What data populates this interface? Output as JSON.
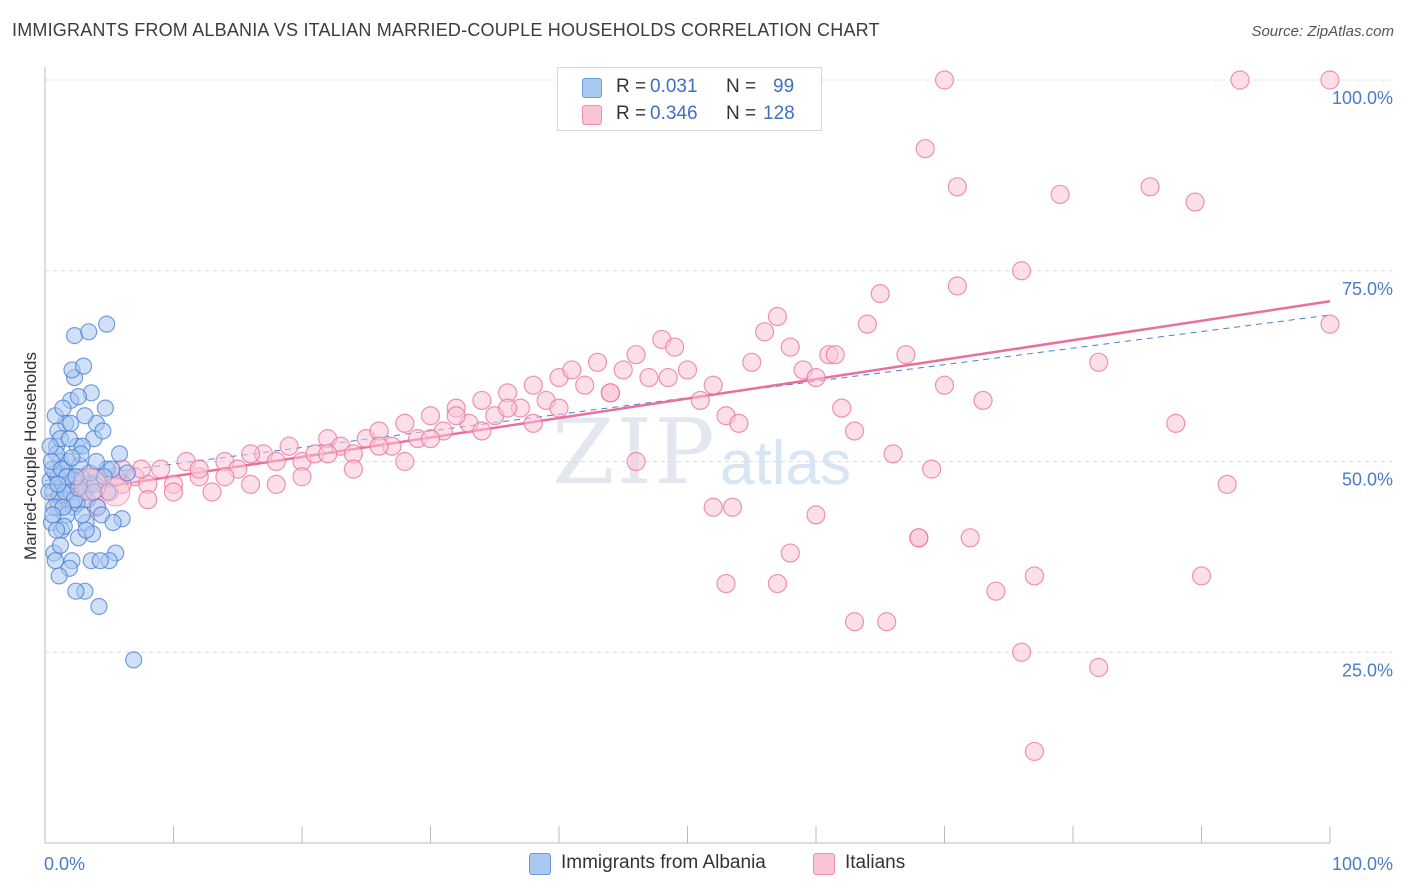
{
  "title": "IMMIGRANTS FROM ALBANIA VS ITALIAN MARRIED-COUPLE HOUSEHOLDS CORRELATION CHART",
  "source": "Source: ZipAtlas.com",
  "watermark": {
    "zip": "ZIP",
    "atlas": "atlas"
  },
  "legend": {
    "rows": [
      {
        "r_label": "R =",
        "r_value": "0.031",
        "n_label": "N =",
        "n_value": "99",
        "color": "#aac8f0",
        "border": "#6b9be0"
      },
      {
        "r_label": "R =",
        "r_value": "0.346",
        "n_label": "N =",
        "n_value": "128",
        "color": "#f9c5d6",
        "border": "#ee8fae"
      }
    ]
  },
  "bottom_legend": [
    {
      "label": "Immigrants from Albania",
      "color": "#aac8f0",
      "border": "#6b9be0"
    },
    {
      "label": "Italians",
      "color": "#f9c5d6",
      "border": "#ee8fae"
    }
  ],
  "chart_data": {
    "type": "scatter",
    "title": "IMMIGRANTS FROM ALBANIA VS ITALIAN MARRIED-COUPLE HOUSEHOLDS CORRELATION CHART",
    "xlabel": "",
    "ylabel": "Married-couple Households",
    "xlim": [
      0,
      100
    ],
    "ylim": [
      0,
      101
    ],
    "x_tick_labels": [
      "0.0%",
      "100.0%"
    ],
    "y_tick_labels": [
      "25.0%",
      "50.0%",
      "75.0%",
      "100.0%"
    ],
    "y_ticks": [
      25,
      50,
      75,
      100
    ],
    "grid": true,
    "legend_position": "top-center",
    "series": [
      {
        "name": "Immigrants from Albania",
        "color": "#4a7fd6",
        "fill": "#aac8f0",
        "trend": {
          "x": [
            0,
            100
          ],
          "y": [
            47.5,
            69.2
          ],
          "style": "dashed"
        },
        "points": [
          [
            0.4,
            47.5
          ],
          [
            0.6,
            46
          ],
          [
            0.8,
            48.5
          ],
          [
            1.0,
            44
          ],
          [
            1.2,
            50
          ],
          [
            1.4,
            47
          ],
          [
            0.5,
            42
          ],
          [
            0.9,
            52
          ],
          [
            1.1,
            45.5
          ],
          [
            1.5,
            49
          ],
          [
            0.7,
            38
          ],
          [
            1.3,
            41
          ],
          [
            1.6,
            55
          ],
          [
            0.8,
            56
          ],
          [
            1.0,
            54
          ],
          [
            2.0,
            58
          ],
          [
            2.3,
            61
          ],
          [
            2.5,
            52
          ],
          [
            2.8,
            48
          ],
          [
            3.0,
            46
          ],
          [
            2.2,
            44
          ],
          [
            1.8,
            50
          ],
          [
            1.7,
            43
          ],
          [
            2.6,
            40
          ],
          [
            3.2,
            42
          ],
          [
            3.5,
            47
          ],
          [
            3.8,
            53
          ],
          [
            4.0,
            55
          ],
          [
            4.5,
            54
          ],
          [
            2.1,
            37
          ],
          [
            1.9,
            36
          ],
          [
            3.1,
            33
          ],
          [
            2.4,
            33
          ],
          [
            4.2,
            31
          ],
          [
            5.5,
            38
          ],
          [
            5.0,
            37
          ],
          [
            3.6,
            37
          ],
          [
            4.8,
            49
          ],
          [
            5.2,
            49
          ],
          [
            6.0,
            42.5
          ],
          [
            2.3,
            66.5
          ],
          [
            3.4,
            67
          ],
          [
            4.8,
            68
          ],
          [
            2.1,
            62
          ],
          [
            3.0,
            62.5
          ],
          [
            3.6,
            59
          ],
          [
            2.6,
            58.5
          ],
          [
            1.4,
            57
          ],
          [
            1.2,
            53
          ],
          [
            2.9,
            52
          ],
          [
            3.3,
            45
          ],
          [
            4.1,
            44
          ],
          [
            4.4,
            43
          ],
          [
            1.0,
            48
          ],
          [
            0.6,
            49
          ],
          [
            0.9,
            51
          ],
          [
            1.8,
            47
          ],
          [
            2.0,
            46
          ],
          [
            2.7,
            49.5
          ],
          [
            3.9,
            47
          ],
          [
            4.6,
            48
          ],
          [
            0.3,
            46
          ],
          [
            0.5,
            50
          ],
          [
            1.6,
            46
          ],
          [
            2.2,
            47.5
          ],
          [
            3.7,
            40.5
          ],
          [
            4.3,
            37
          ],
          [
            5.8,
            51
          ],
          [
            6.4,
            48.5
          ],
          [
            1.1,
            35
          ],
          [
            0.8,
            37
          ],
          [
            2.5,
            44.5
          ],
          [
            3.2,
            41
          ],
          [
            1.5,
            41.5
          ],
          [
            0.7,
            44
          ],
          [
            1.3,
            49
          ],
          [
            2.9,
            43
          ],
          [
            1.9,
            53
          ],
          [
            4.7,
            57
          ],
          [
            3.1,
            56
          ],
          [
            0.4,
            52
          ],
          [
            1.2,
            39
          ],
          [
            2.3,
            45
          ],
          [
            2.0,
            55
          ],
          [
            2.8,
            51
          ],
          [
            5.3,
            42
          ],
          [
            6.9,
            24
          ],
          [
            1.7,
            48
          ],
          [
            3.5,
            48.5
          ],
          [
            4.0,
            50
          ],
          [
            2.6,
            46.5
          ],
          [
            1.4,
            44
          ],
          [
            0.9,
            41
          ],
          [
            0.6,
            43
          ],
          [
            2.4,
            48
          ],
          [
            3.8,
            46
          ],
          [
            1.0,
            47
          ],
          [
            2.1,
            50.5
          ],
          [
            4.9,
            46
          ]
        ]
      },
      {
        "name": "Italians",
        "color": "#e9709a",
        "fill": "#f9c5d6",
        "trend": {
          "x": [
            0,
            100
          ],
          "y": [
            45.5,
            71.0
          ],
          "style": "solid"
        },
        "points": [
          [
            1.0,
            45
          ],
          [
            2.0,
            47
          ],
          [
            3.0,
            46
          ],
          [
            4.0,
            48
          ],
          [
            5.0,
            46
          ],
          [
            6.0,
            49
          ],
          [
            7.0,
            48
          ],
          [
            8.0,
            47
          ],
          [
            9.0,
            49
          ],
          [
            10.0,
            47
          ],
          [
            11.0,
            50
          ],
          [
            12.0,
            48
          ],
          [
            13.0,
            46
          ],
          [
            14.0,
            50
          ],
          [
            15.0,
            49
          ],
          [
            16.0,
            47
          ],
          [
            17.0,
            51
          ],
          [
            18.0,
            50
          ],
          [
            19.0,
            52
          ],
          [
            20.0,
            50
          ],
          [
            21.0,
            51
          ],
          [
            22.0,
            53
          ],
          [
            23.0,
            52
          ],
          [
            24.0,
            51
          ],
          [
            25.0,
            53
          ],
          [
            26.0,
            54
          ],
          [
            27.0,
            52
          ],
          [
            28.0,
            55
          ],
          [
            29.0,
            53
          ],
          [
            30.0,
            56
          ],
          [
            31.0,
            54
          ],
          [
            32.0,
            57
          ],
          [
            33.0,
            55
          ],
          [
            34.0,
            58
          ],
          [
            35.0,
            56
          ],
          [
            36.0,
            59
          ],
          [
            37.0,
            57
          ],
          [
            38.0,
            60
          ],
          [
            39.0,
            58
          ],
          [
            40.0,
            61
          ],
          [
            41.0,
            62
          ],
          [
            42.0,
            60
          ],
          [
            43.0,
            63
          ],
          [
            44.0,
            59
          ],
          [
            45.0,
            62
          ],
          [
            46.0,
            64
          ],
          [
            47.0,
            61
          ],
          [
            48.0,
            66
          ],
          [
            49.0,
            65
          ],
          [
            50.0,
            62
          ],
          [
            51.0,
            58
          ],
          [
            52.0,
            60
          ],
          [
            53.0,
            56
          ],
          [
            54.0,
            55
          ],
          [
            55.0,
            63
          ],
          [
            56.0,
            67
          ],
          [
            57.0,
            69
          ],
          [
            58.0,
            65
          ],
          [
            59.0,
            62
          ],
          [
            60.0,
            61
          ],
          [
            61.0,
            64
          ],
          [
            62.0,
            57
          ],
          [
            63.0,
            54
          ],
          [
            64.0,
            68
          ],
          [
            65.0,
            72
          ],
          [
            66.0,
            51
          ],
          [
            67.0,
            64
          ],
          [
            68.0,
            40
          ],
          [
            69.0,
            49
          ],
          [
            70.0,
            60
          ],
          [
            73.0,
            58
          ],
          [
            76.0,
            75
          ],
          [
            79.0,
            85
          ],
          [
            82.0,
            63
          ],
          [
            88.0,
            55
          ],
          [
            92.0,
            47
          ],
          [
            100.0,
            68
          ],
          [
            100.0,
            100
          ],
          [
            93.0,
            100
          ],
          [
            70.0,
            100
          ],
          [
            52.0,
            44
          ],
          [
            53.5,
            44
          ],
          [
            46.0,
            50
          ],
          [
            53.0,
            34
          ],
          [
            57.0,
            34
          ],
          [
            58.0,
            38
          ],
          [
            60.0,
            43
          ],
          [
            63.0,
            29
          ],
          [
            65.5,
            29
          ],
          [
            68.0,
            40
          ],
          [
            72.0,
            40
          ],
          [
            74.0,
            33
          ],
          [
            76.0,
            25
          ],
          [
            77.0,
            35
          ],
          [
            82.0,
            23
          ],
          [
            90.0,
            35
          ],
          [
            77.0,
            12
          ],
          [
            71.0,
            86
          ],
          [
            86.0,
            86
          ],
          [
            89.5,
            84
          ],
          [
            68.5,
            91
          ],
          [
            71.0,
            73
          ],
          [
            61.5,
            64
          ],
          [
            48.5,
            61
          ],
          [
            44.0,
            59
          ],
          [
            40.0,
            57
          ],
          [
            38.0,
            55
          ],
          [
            36.0,
            57
          ],
          [
            34.0,
            54
          ],
          [
            32.0,
            56
          ],
          [
            30.0,
            53
          ],
          [
            28.0,
            50
          ],
          [
            26.0,
            52
          ],
          [
            24.0,
            49
          ],
          [
            22.0,
            51
          ],
          [
            20.0,
            48
          ],
          [
            18.0,
            47
          ],
          [
            16.0,
            51
          ],
          [
            14.0,
            48
          ],
          [
            12.0,
            49
          ],
          [
            10.0,
            46
          ],
          [
            8.0,
            45
          ],
          [
            6.0,
            47
          ],
          [
            4.0,
            44
          ],
          [
            2.0,
            45
          ],
          [
            3.5,
            47
          ],
          [
            5.5,
            48
          ],
          [
            7.5,
            49
          ]
        ]
      }
    ]
  }
}
